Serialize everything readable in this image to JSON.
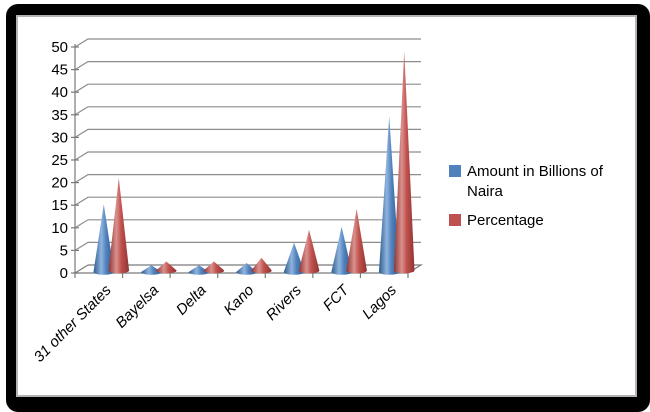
{
  "chart_data": {
    "type": "bar",
    "subtype": "3d-cone-columns",
    "title": "",
    "xlabel": "",
    "ylabel": "",
    "categories": [
      "31 other States",
      "Bayelsa",
      "Delta",
      "Kano",
      "Rivers",
      "FCT",
      "Lagos"
    ],
    "series": [
      {
        "name": "Amount in Billions of Naira",
        "color": "#4F81BD",
        "color_dark": "#2F5B8F",
        "color_light": "#8FB4DE",
        "values": [
          15,
          1.5,
          1.5,
          2,
          6.5,
          10,
          34.5
        ]
      },
      {
        "name": "Percentage",
        "color": "#C0504D",
        "color_dark": "#8E3432",
        "color_light": "#DA918E",
        "values": [
          20.5,
          2,
          2,
          2.8,
          9,
          13.6,
          48.5
        ]
      }
    ],
    "ylim": [
      0,
      50
    ],
    "yticks": [
      0,
      5,
      10,
      15,
      20,
      25,
      30,
      35,
      40,
      45,
      50
    ],
    "grid": true,
    "legend_position": "right",
    "gridline_color": "#8C8C8C",
    "axis_color": "#7A7A7A",
    "label_color": "#000000",
    "frame_color": "#000000",
    "inner_border_color": "#B3B3B3",
    "background_color": "#FFFFFF"
  }
}
